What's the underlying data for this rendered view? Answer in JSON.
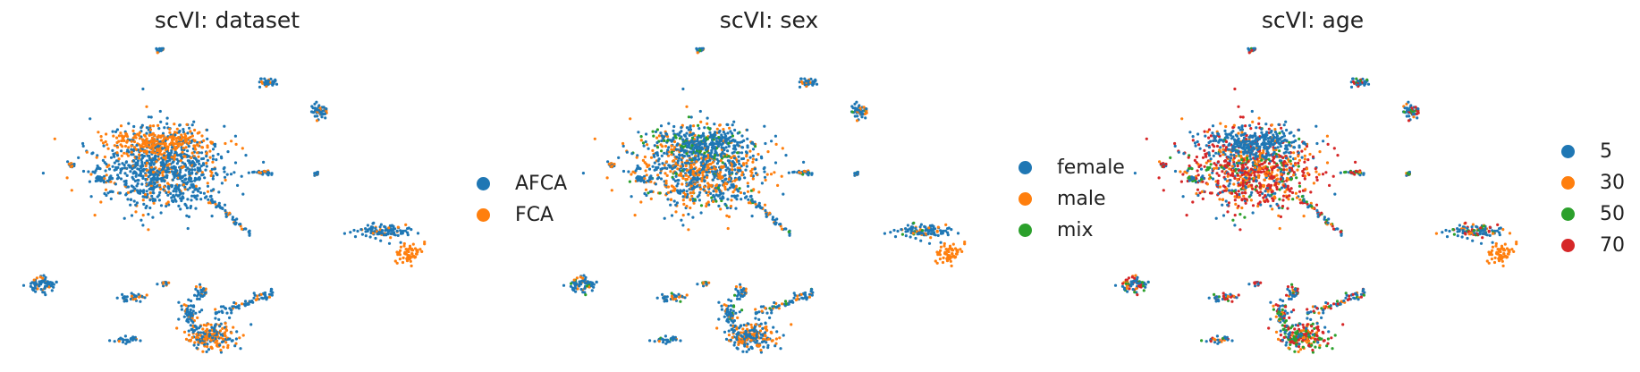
{
  "colors": {
    "blue": "#1f77b4",
    "orange": "#ff7f0e",
    "green": "#2ca02c",
    "red": "#d62728"
  },
  "chart_data": [
    {
      "type": "scatter",
      "title": "scVI: dataset",
      "legend": {
        "placement": "right",
        "entries": [
          {
            "label": "AFCA",
            "color": "#1f77b4"
          },
          {
            "label": "FCA",
            "color": "#ff7f0e"
          }
        ]
      },
      "axes_visible": false,
      "grid": false
    },
    {
      "type": "scatter",
      "title": "scVI: sex",
      "legend": {
        "placement": "right",
        "entries": [
          {
            "label": "female",
            "color": "#1f77b4"
          },
          {
            "label": "male",
            "color": "#ff7f0e"
          },
          {
            "label": "mix",
            "color": "#2ca02c"
          }
        ]
      },
      "axes_visible": false,
      "grid": false
    },
    {
      "type": "scatter",
      "title": "scVI: age",
      "legend": {
        "placement": "right",
        "entries": [
          {
            "label": "5",
            "color": "#1f77b4"
          },
          {
            "label": "30",
            "color": "#ff7f0e"
          },
          {
            "label": "50",
            "color": "#2ca02c"
          },
          {
            "label": "70",
            "color": "#d62728"
          }
        ]
      },
      "axes_visible": false,
      "grid": false
    }
  ]
}
